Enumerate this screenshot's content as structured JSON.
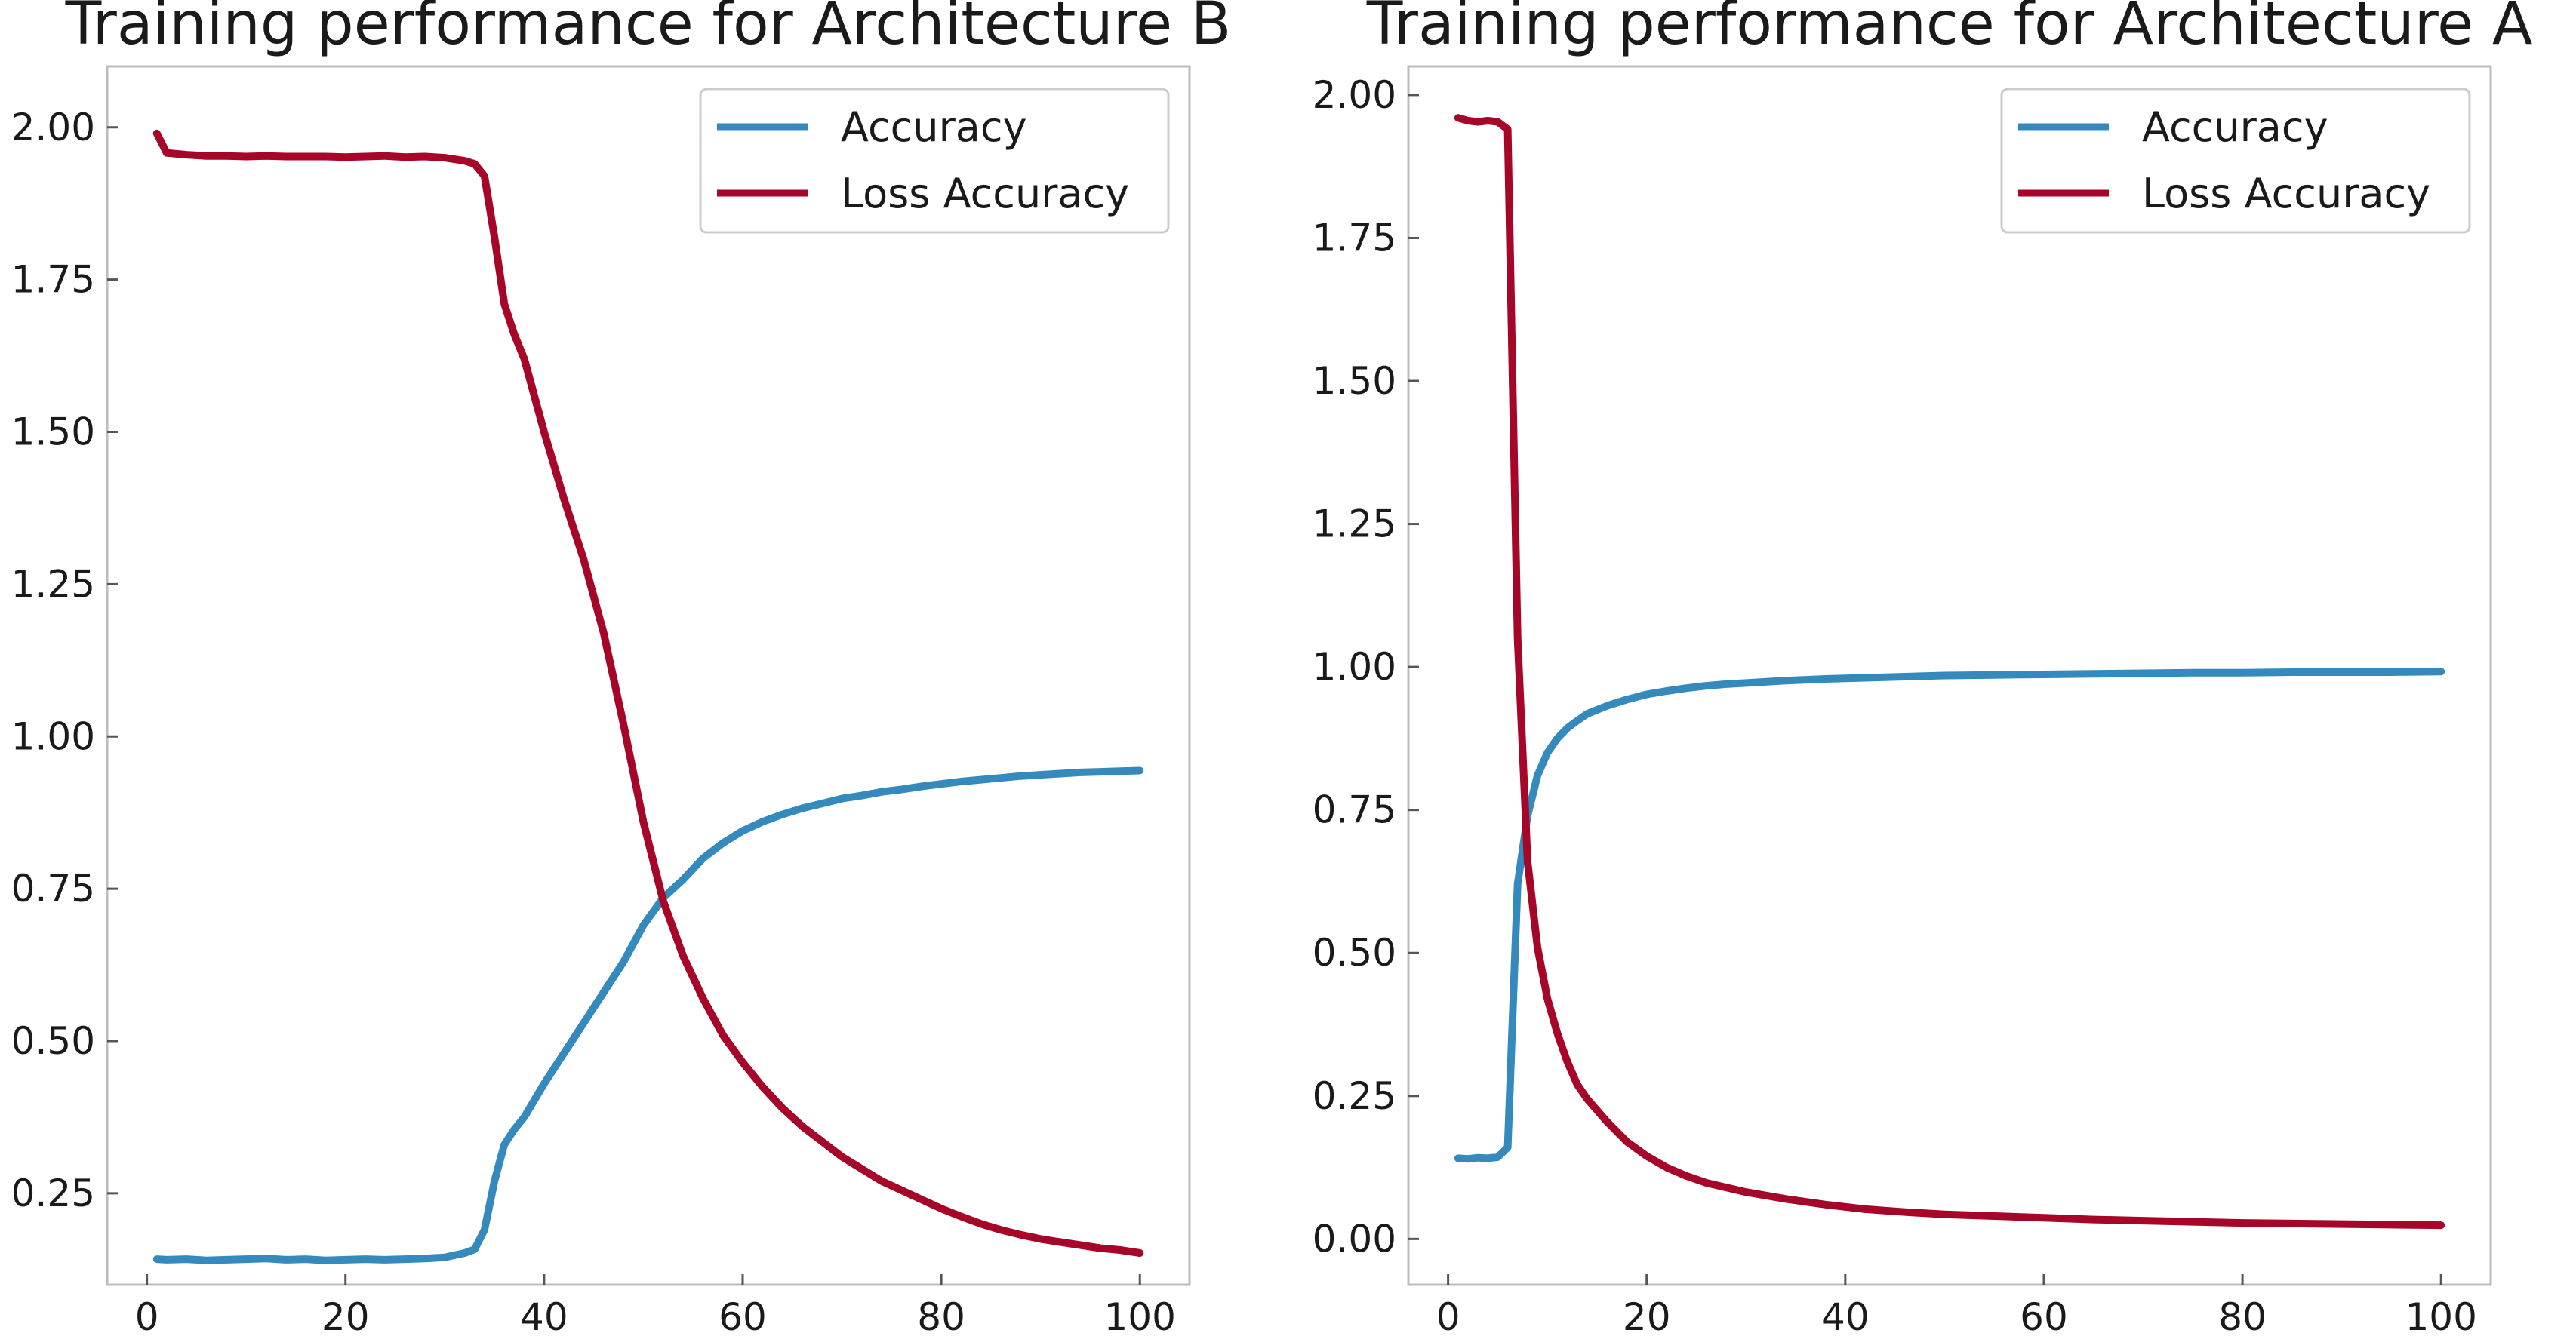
{
  "chart_data": [
    {
      "type": "line",
      "title": "Training performance for Architecture B",
      "xlabel": "",
      "ylabel": "",
      "xlim": [
        -4,
        105
      ],
      "ylim": [
        0.1,
        2.1
      ],
      "xticks": [
        0,
        20,
        40,
        60,
        80,
        100
      ],
      "yticks": [
        0.25,
        0.5,
        0.75,
        1.0,
        1.25,
        1.5,
        1.75,
        2.0
      ],
      "ytick_labels": [
        "0.25",
        "0.50",
        "0.75",
        "1.00",
        "1.25",
        "1.50",
        "1.75",
        "2.00"
      ],
      "grid": false,
      "legend_position": "top-right",
      "series": [
        {
          "name": "Accuracy",
          "color": "#348abd",
          "x": [
            1,
            2,
            4,
            6,
            8,
            10,
            12,
            14,
            16,
            18,
            20,
            22,
            24,
            26,
            28,
            30,
            32,
            33,
            34,
            35,
            36,
            37,
            38,
            40,
            42,
            44,
            46,
            48,
            50,
            52,
            54,
            56,
            58,
            60,
            62,
            64,
            66,
            68,
            70,
            72,
            74,
            76,
            78,
            80,
            82,
            84,
            86,
            88,
            90,
            92,
            94,
            96,
            98,
            100
          ],
          "y": [
            0.142,
            0.141,
            0.142,
            0.14,
            0.141,
            0.142,
            0.143,
            0.141,
            0.142,
            0.14,
            0.141,
            0.142,
            0.141,
            0.142,
            0.143,
            0.145,
            0.152,
            0.158,
            0.19,
            0.27,
            0.33,
            0.355,
            0.375,
            0.43,
            0.48,
            0.53,
            0.58,
            0.63,
            0.69,
            0.735,
            0.765,
            0.8,
            0.825,
            0.845,
            0.86,
            0.872,
            0.882,
            0.89,
            0.898,
            0.903,
            0.909,
            0.913,
            0.918,
            0.922,
            0.926,
            0.929,
            0.932,
            0.935,
            0.937,
            0.939,
            0.941,
            0.942,
            0.943,
            0.944
          ]
        },
        {
          "name": "Loss Accuracy",
          "color": "#a60628",
          "x": [
            1,
            2,
            4,
            6,
            8,
            10,
            12,
            14,
            16,
            18,
            20,
            22,
            24,
            26,
            28,
            30,
            32,
            33,
            34,
            35,
            36,
            37,
            38,
            40,
            42,
            44,
            46,
            48,
            50,
            52,
            54,
            56,
            58,
            60,
            62,
            64,
            66,
            68,
            70,
            72,
            74,
            76,
            78,
            80,
            82,
            84,
            86,
            88,
            90,
            92,
            94,
            96,
            98,
            100
          ],
          "y": [
            1.99,
            1.958,
            1.955,
            1.953,
            1.953,
            1.952,
            1.953,
            1.952,
            1.952,
            1.952,
            1.951,
            1.952,
            1.953,
            1.951,
            1.952,
            1.95,
            1.945,
            1.94,
            1.92,
            1.82,
            1.71,
            1.66,
            1.62,
            1.5,
            1.39,
            1.29,
            1.17,
            1.02,
            0.86,
            0.73,
            0.64,
            0.57,
            0.51,
            0.465,
            0.425,
            0.39,
            0.36,
            0.335,
            0.31,
            0.29,
            0.27,
            0.255,
            0.24,
            0.225,
            0.212,
            0.2,
            0.19,
            0.182,
            0.175,
            0.17,
            0.165,
            0.16,
            0.157,
            0.152
          ]
        }
      ]
    },
    {
      "type": "line",
      "title": "Training performance for Architecture A",
      "xlabel": "",
      "ylabel": "",
      "xlim": [
        -4,
        105
      ],
      "ylim": [
        -0.08,
        2.05
      ],
      "xticks": [
        0,
        20,
        40,
        60,
        80,
        100
      ],
      "yticks": [
        0.0,
        0.25,
        0.5,
        0.75,
        1.0,
        1.25,
        1.5,
        1.75,
        2.0
      ],
      "ytick_labels": [
        "0.00",
        "0.25",
        "0.50",
        "0.75",
        "1.00",
        "1.25",
        "1.50",
        "1.75",
        "2.00"
      ],
      "grid": false,
      "legend_position": "top-right",
      "series": [
        {
          "name": "Accuracy",
          "color": "#348abd",
          "x": [
            1,
            2,
            3,
            4,
            5,
            6,
            7,
            8,
            9,
            10,
            11,
            12,
            13,
            14,
            16,
            18,
            20,
            22,
            24,
            26,
            28,
            30,
            34,
            38,
            42,
            46,
            50,
            55,
            60,
            65,
            70,
            75,
            80,
            85,
            90,
            95,
            100
          ],
          "y": [
            0.141,
            0.14,
            0.142,
            0.141,
            0.143,
            0.16,
            0.62,
            0.74,
            0.81,
            0.85,
            0.875,
            0.893,
            0.906,
            0.918,
            0.932,
            0.943,
            0.952,
            0.958,
            0.963,
            0.967,
            0.97,
            0.972,
            0.976,
            0.979,
            0.981,
            0.983,
            0.985,
            0.986,
            0.987,
            0.988,
            0.989,
            0.99,
            0.99,
            0.991,
            0.991,
            0.991,
            0.992
          ]
        },
        {
          "name": "Loss Accuracy",
          "color": "#a60628",
          "x": [
            1,
            2,
            3,
            4,
            5,
            6,
            7,
            8,
            9,
            10,
            11,
            12,
            13,
            14,
            16,
            18,
            20,
            22,
            24,
            26,
            28,
            30,
            34,
            38,
            42,
            46,
            50,
            55,
            60,
            65,
            70,
            75,
            80,
            85,
            90,
            95,
            100
          ],
          "y": [
            1.96,
            1.955,
            1.953,
            1.955,
            1.953,
            1.94,
            1.05,
            0.66,
            0.51,
            0.42,
            0.36,
            0.31,
            0.27,
            0.245,
            0.205,
            0.17,
            0.145,
            0.125,
            0.11,
            0.098,
            0.09,
            0.082,
            0.07,
            0.06,
            0.052,
            0.047,
            0.043,
            0.04,
            0.037,
            0.034,
            0.032,
            0.03,
            0.028,
            0.027,
            0.026,
            0.025,
            0.024
          ]
        }
      ]
    }
  ]
}
